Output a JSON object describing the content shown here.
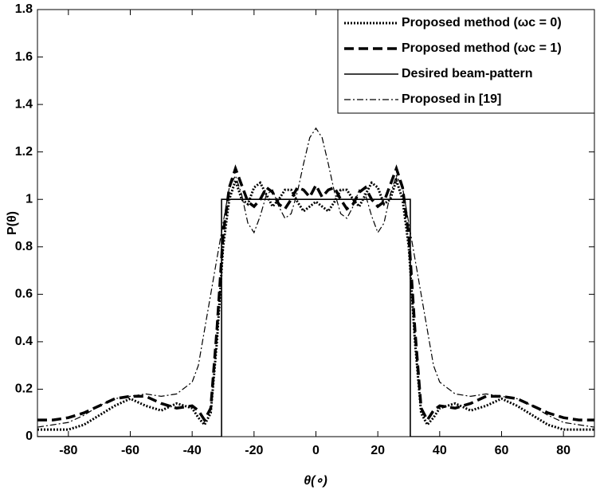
{
  "chart_data": {
    "type": "line",
    "xlabel": "θ(∘)",
    "ylabel": "P(θ)",
    "xlim": [
      -90,
      90
    ],
    "xticks": [
      -80,
      -60,
      -40,
      -20,
      0,
      20,
      40,
      60,
      80
    ],
    "ylim": [
      0,
      1.8
    ],
    "yticks": [
      0,
      0.2,
      0.4,
      0.6,
      0.8,
      1,
      1.2,
      1.4,
      1.6,
      1.8
    ],
    "legend": "upper right",
    "x": [
      -90,
      -85,
      -80,
      -75,
      -70,
      -65,
      -60,
      -55,
      -50,
      -45,
      -40,
      -38,
      -36,
      -34,
      -32,
      -30,
      -28,
      -26,
      -24,
      -22,
      -20,
      -18,
      -16,
      -14,
      -12,
      -10,
      -8,
      -6,
      -4,
      -2,
      0,
      2,
      4,
      6,
      8,
      10,
      12,
      14,
      16,
      18,
      20,
      22,
      24,
      26,
      28,
      30,
      32,
      34,
      36,
      38,
      40,
      45,
      50,
      55,
      60,
      65,
      70,
      75,
      80,
      85,
      90
    ],
    "series": [
      {
        "name": "Proposed method (ωc = 0)",
        "color": "#000000",
        "dash": "dotted",
        "values": [
          0.03,
          0.03,
          0.03,
          0.05,
          0.09,
          0.13,
          0.16,
          0.13,
          0.11,
          0.14,
          0.12,
          0.08,
          0.05,
          0.1,
          0.4,
          0.8,
          1.0,
          1.08,
          1.0,
          0.98,
          1.05,
          1.07,
          1.02,
          0.97,
          1.0,
          1.04,
          1.04,
          0.99,
          0.95,
          0.97,
          0.99,
          0.97,
          0.95,
          0.99,
          1.04,
          1.04,
          1.0,
          0.97,
          1.02,
          1.07,
          1.05,
          0.98,
          1.0,
          1.08,
          1.0,
          0.8,
          0.4,
          0.1,
          0.05,
          0.08,
          0.12,
          0.14,
          0.11,
          0.13,
          0.16,
          0.13,
          0.09,
          0.05,
          0.03,
          0.03,
          0.03
        ]
      },
      {
        "name": "Proposed method (ωc = 1)",
        "color": "#000000",
        "dash": "dashed",
        "values": [
          0.07,
          0.07,
          0.08,
          0.1,
          0.13,
          0.16,
          0.17,
          0.17,
          0.14,
          0.12,
          0.13,
          0.11,
          0.07,
          0.12,
          0.45,
          0.85,
          1.05,
          1.13,
          1.06,
          0.99,
          0.97,
          1.0,
          1.05,
          1.03,
          0.98,
          0.96,
          1.0,
          1.05,
          1.04,
          1.01,
          1.06,
          1.01,
          1.04,
          1.05,
          1.0,
          0.96,
          0.98,
          1.03,
          1.05,
          1.0,
          0.97,
          0.99,
          1.06,
          1.13,
          1.05,
          0.85,
          0.45,
          0.12,
          0.07,
          0.11,
          0.13,
          0.12,
          0.14,
          0.17,
          0.17,
          0.16,
          0.13,
          0.1,
          0.08,
          0.07,
          0.07
        ]
      },
      {
        "name": "Desired beam-pattern",
        "color": "#000000",
        "dash": "solid",
        "x": [
          -90,
          -30.5,
          -30.5,
          30.5,
          30.5,
          90
        ],
        "values": [
          0,
          0,
          1,
          1,
          0,
          0
        ]
      },
      {
        "name": "Proposed in [19]",
        "color": "#000000",
        "dash": "dashdot",
        "values": [
          0.04,
          0.05,
          0.06,
          0.09,
          0.13,
          0.16,
          0.17,
          0.18,
          0.17,
          0.18,
          0.23,
          0.3,
          0.45,
          0.6,
          0.75,
          0.9,
          1.05,
          1.1,
          1.02,
          0.9,
          0.86,
          0.93,
          1.02,
          1.04,
          0.97,
          0.92,
          0.94,
          1.03,
          1.15,
          1.26,
          1.3,
          1.26,
          1.15,
          1.03,
          0.94,
          0.92,
          0.97,
          1.04,
          1.02,
          0.93,
          0.86,
          0.9,
          1.02,
          1.1,
          1.05,
          0.9,
          0.75,
          0.6,
          0.45,
          0.3,
          0.23,
          0.18,
          0.17,
          0.18,
          0.17,
          0.16,
          0.13,
          0.09,
          0.06,
          0.05,
          0.04
        ]
      }
    ]
  }
}
